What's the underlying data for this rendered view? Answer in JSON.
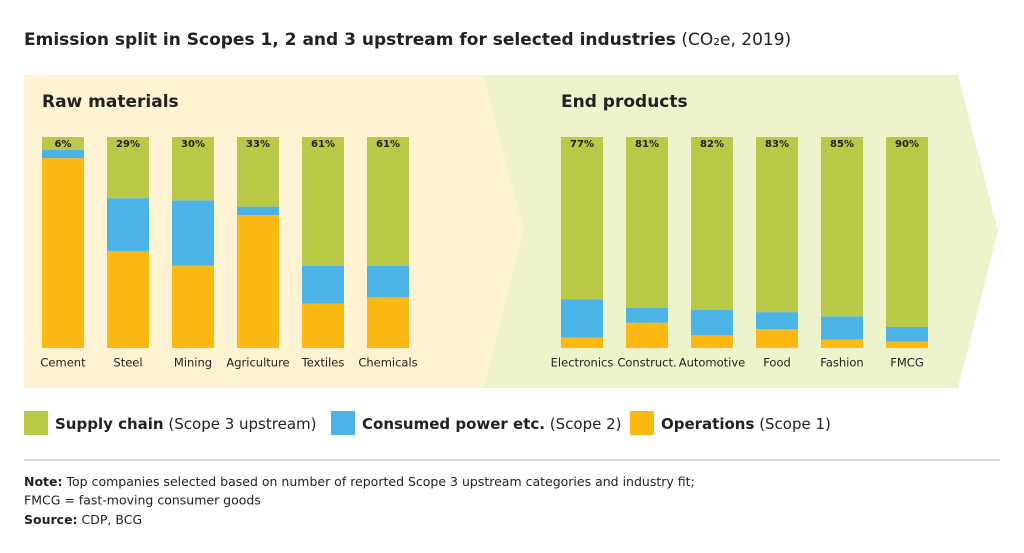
{
  "title": "Emission split in Scopes 1, 2 and 3 upstream for selected industries",
  "title_detail": "(CO₂e, 2019)",
  "legend_details": [
    "(Scope 3 upstream)",
    "(Scope 2)",
    "(Scope 1)"
  ],
  "note_label": "Note:",
  "note": "Top companies selected based on number of reported Scope 3 upstream categories and industry fit;",
  "note_line2": "FMCG = fast-moving consumer goods",
  "source_label": "Source:",
  "source": "CDP, BCG",
  "chart_data": [
    {
      "type": "bar",
      "stacked": true,
      "title": "Raw materials",
      "categories": [
        "Cement",
        "Steel",
        "Mining",
        "Agriculture",
        "Textiles",
        "Chemicals"
      ],
      "ylim": [
        0,
        100
      ],
      "series": [
        {
          "name": "Supply chain",
          "color": "#b9c846",
          "values": [
            6,
            29,
            30,
            33,
            61,
            61
          ],
          "value_labels": [
            "6%",
            "29%",
            "30%",
            "33%",
            "61%",
            "61%"
          ]
        },
        {
          "name": "Consumed power etc.",
          "color": "#4cb3e6",
          "values": [
            4,
            25,
            31,
            4,
            18,
            15
          ]
        },
        {
          "name": "Operations",
          "color": "#fdb913",
          "values": [
            90,
            46,
            39,
            63,
            21,
            24
          ]
        }
      ]
    },
    {
      "type": "bar",
      "stacked": true,
      "title": "End products",
      "categories": [
        "Electronics",
        "Construct.",
        "Automotive",
        "Food",
        "Fashion",
        "FMCG"
      ],
      "ylim": [
        0,
        100
      ],
      "series": [
        {
          "name": "Supply chain",
          "color": "#b9c846",
          "values": [
            77,
            81,
            82,
            83,
            85,
            90
          ],
          "value_labels": [
            "77%",
            "81%",
            "82%",
            "83%",
            "85%",
            "90%"
          ]
        },
        {
          "name": "Consumed power etc.",
          "color": "#4cb3e6",
          "values": [
            18,
            7,
            12,
            8,
            11,
            7
          ]
        },
        {
          "name": "Operations",
          "color": "#fdb913",
          "values": [
            5,
            12,
            6,
            9,
            4,
            3
          ]
        }
      ]
    }
  ]
}
